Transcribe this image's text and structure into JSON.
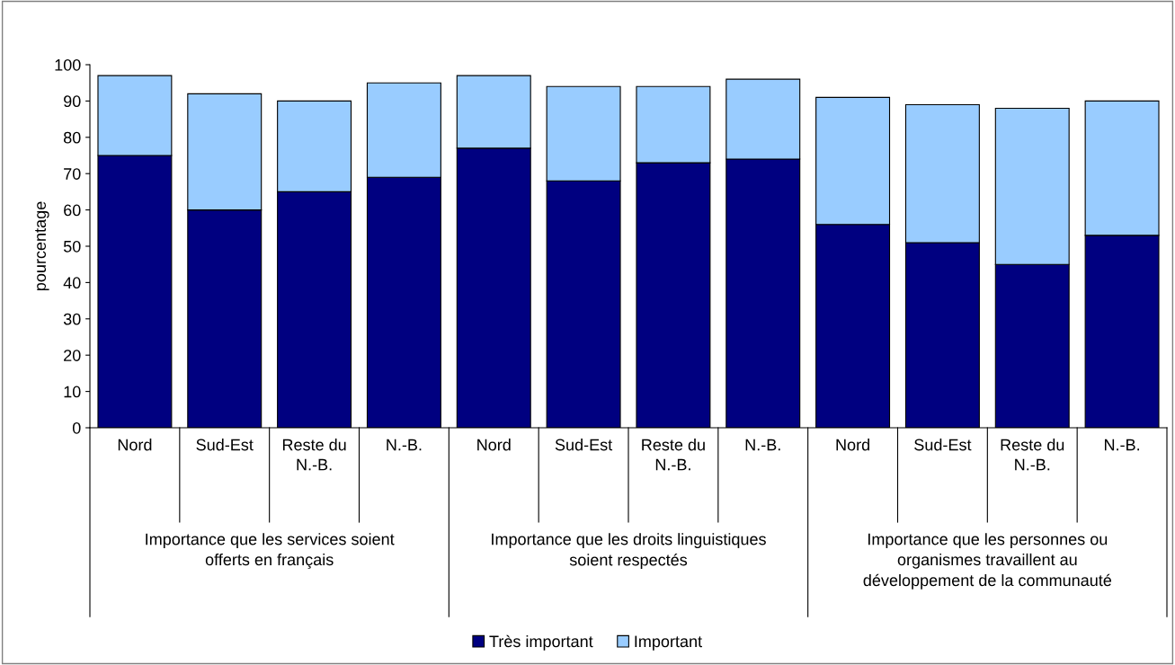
{
  "chart_data": {
    "type": "bar",
    "stacked": true,
    "ylabel": "pourcentage",
    "categories": [
      "Nord",
      "Sud-Est",
      "Reste du\nN.-B.",
      "N.-B.",
      "Nord",
      "Sud-Est",
      "Reste du\nN.-B.",
      "N.-B.",
      "Nord",
      "Sud-Est",
      "Reste du\nN.-B.",
      "N.-B."
    ],
    "series": [
      {
        "name": "Très important",
        "color": "#000080",
        "values": [
          75,
          60,
          65,
          69,
          77,
          68,
          73,
          74,
          56,
          51,
          45,
          53
        ]
      },
      {
        "name": "Important",
        "color": "#99ccff",
        "values": [
          22,
          32,
          25,
          26,
          20,
          26,
          21,
          22,
          35,
          38,
          43,
          37
        ]
      }
    ],
    "annotations": [
      "Importance que les services soient\nofferts en français",
      "Importance que les droits linguistiques\nsoient respectés",
      "Importance que les personnes ou\norganismes travaillent au\ndéveloppement de la communauté"
    ],
    "ylim": [
      0,
      100
    ],
    "yticks": [
      0,
      10,
      20,
      30,
      40,
      50,
      60,
      70,
      80,
      90,
      100
    ],
    "grid": false,
    "legend": "bottom"
  }
}
